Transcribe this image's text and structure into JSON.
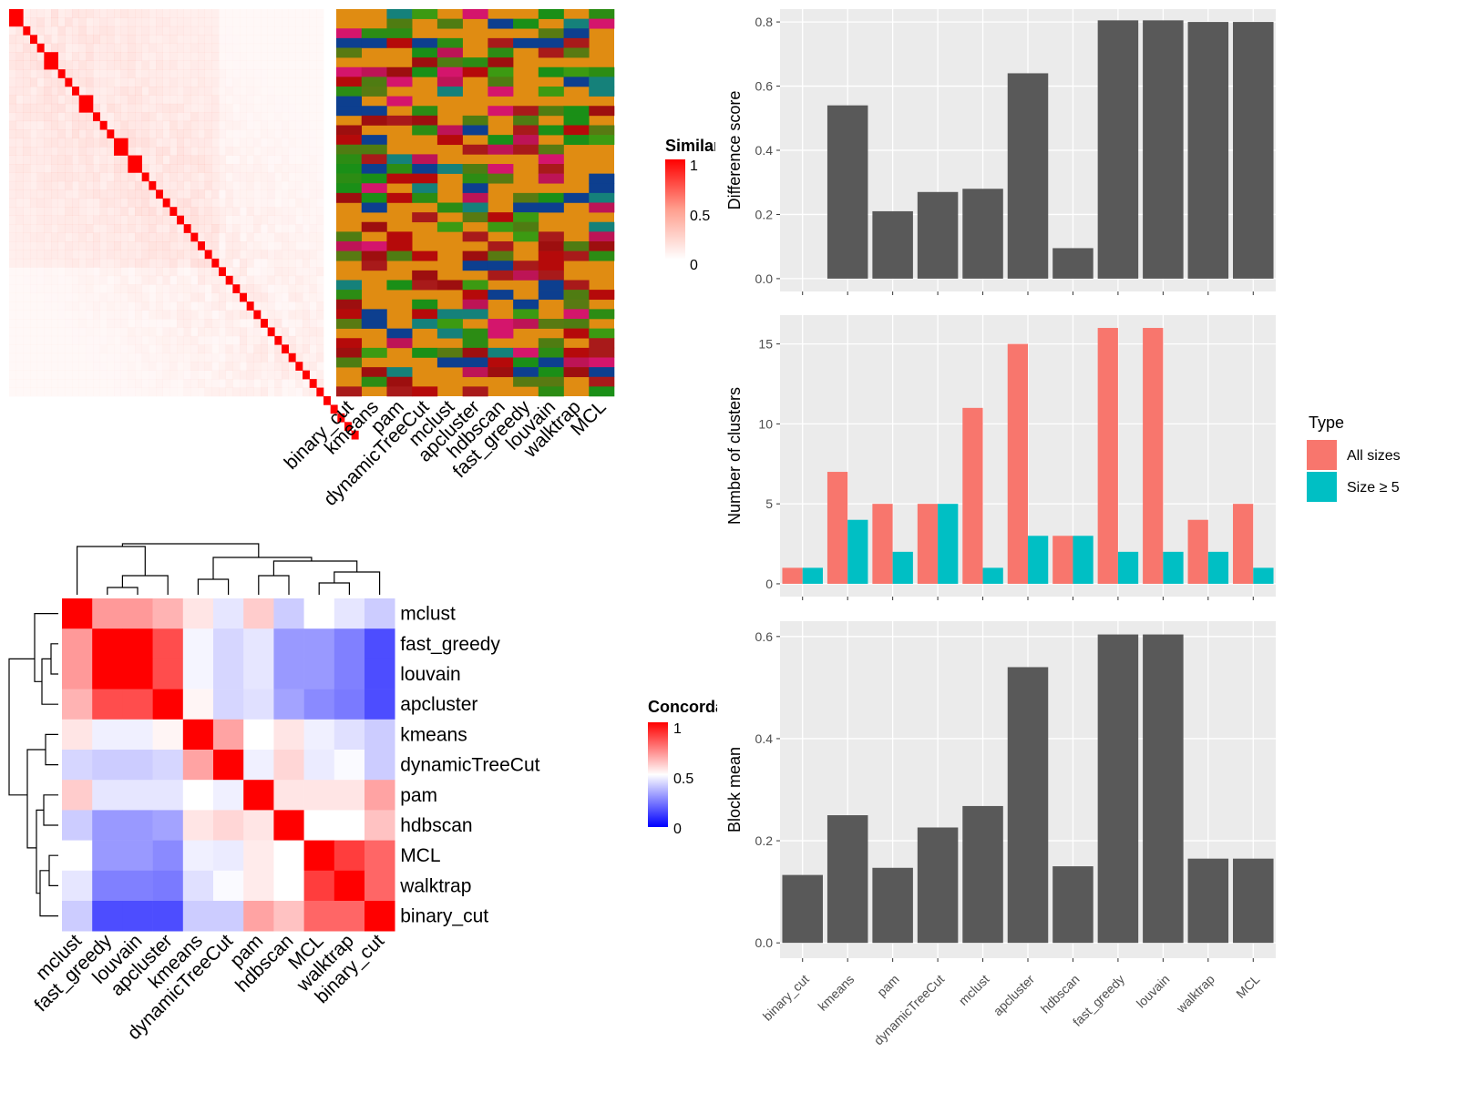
{
  "chart_data": [
    {
      "type": "heatmap",
      "name": "similarity-heatmap",
      "legend_title": "Similarity",
      "legend_ticks": [
        "1",
        "0.5",
        "0"
      ],
      "colors": {
        "low": "#ffffff",
        "high": "#ff0000"
      },
      "blocks": [
        2,
        1,
        1,
        1,
        2,
        1,
        1,
        1,
        2,
        1,
        1,
        1,
        2,
        2,
        1,
        1,
        1,
        1,
        1,
        1,
        1,
        1,
        1,
        1,
        1,
        1,
        1,
        1,
        1,
        1,
        1,
        1,
        1,
        1,
        1,
        1,
        1,
        1,
        1,
        1,
        1,
        1,
        1,
        1,
        1
      ]
    },
    {
      "type": "heatmap",
      "name": "cluster-membership",
      "columns": [
        "binary_cut",
        "kmeans",
        "pam",
        "dynamicTreeCut",
        "mclust",
        "apcluster",
        "hdbscan",
        "fast_greedy",
        "louvain",
        "walktrap",
        "MCL"
      ]
    },
    {
      "type": "heatmap",
      "name": "concordance-heatmap",
      "legend_title": "Concordance",
      "legend_ticks": [
        "1",
        "0.5",
        "0"
      ],
      "rows": [
        "mclust",
        "fast_greedy",
        "louvain",
        "apcluster",
        "kmeans",
        "dynamicTreeCut",
        "pam",
        "hdbscan",
        "MCL",
        "walktrap",
        "binary_cut"
      ],
      "columns": [
        "mclust",
        "fast_greedy",
        "louvain",
        "apcluster",
        "kmeans",
        "dynamicTreeCut",
        "pam",
        "hdbscan",
        "MCL",
        "walktrap",
        "binary_cut"
      ],
      "values": [
        [
          1.0,
          0.7,
          0.7,
          0.65,
          0.55,
          0.45,
          0.6,
          0.4,
          0.5,
          0.45,
          0.4
        ],
        [
          0.7,
          1.0,
          1.0,
          0.85,
          0.48,
          0.42,
          0.45,
          0.3,
          0.3,
          0.25,
          0.15
        ],
        [
          0.7,
          1.0,
          1.0,
          0.85,
          0.48,
          0.42,
          0.45,
          0.3,
          0.3,
          0.25,
          0.15
        ],
        [
          0.65,
          0.85,
          0.85,
          1.0,
          0.52,
          0.42,
          0.44,
          0.32,
          0.27,
          0.24,
          0.15
        ],
        [
          0.55,
          0.47,
          0.47,
          0.52,
          1.0,
          0.68,
          0.5,
          0.55,
          0.47,
          0.44,
          0.4
        ],
        [
          0.42,
          0.4,
          0.4,
          0.42,
          0.68,
          1.0,
          0.47,
          0.58,
          0.46,
          0.49,
          0.4
        ],
        [
          0.6,
          0.45,
          0.45,
          0.45,
          0.5,
          0.47,
          1.0,
          0.55,
          0.55,
          0.55,
          0.68
        ],
        [
          0.4,
          0.3,
          0.3,
          0.32,
          0.55,
          0.58,
          0.55,
          1.0,
          0.5,
          0.5,
          0.62
        ],
        [
          0.5,
          0.3,
          0.3,
          0.27,
          0.47,
          0.46,
          0.54,
          0.5,
          1.0,
          0.88,
          0.8
        ],
        [
          0.45,
          0.25,
          0.25,
          0.24,
          0.44,
          0.49,
          0.54,
          0.5,
          0.88,
          1.0,
          0.8
        ],
        [
          0.4,
          0.15,
          0.15,
          0.15,
          0.4,
          0.4,
          0.68,
          0.62,
          0.8,
          0.8,
          1.0
        ]
      ]
    },
    {
      "type": "bar",
      "name": "difference-score",
      "categories": [
        "binary_cut",
        "kmeans",
        "pam",
        "dynamicTreeCut",
        "mclust",
        "apcluster",
        "hdbscan",
        "fast_greedy",
        "louvain",
        "walktrap",
        "MCL"
      ],
      "values": [
        0,
        0.54,
        0.21,
        0.27,
        0.28,
        0.64,
        0.095,
        0.805,
        0.805,
        0.8,
        0.8
      ],
      "ylabel": "Difference score",
      "ylim": [
        -0.04,
        0.84
      ],
      "yticks": [
        "0.0",
        "0.2",
        "0.4",
        "0.6",
        "0.8"
      ],
      "grid": true,
      "colors": {
        "bar": "#595959",
        "panel": "#ebebeb",
        "grid": "#ffffff"
      }
    },
    {
      "type": "bar",
      "name": "number-of-clusters",
      "categories": [
        "binary_cut",
        "kmeans",
        "pam",
        "dynamicTreeCut",
        "mclust",
        "apcluster",
        "hdbscan",
        "fast_greedy",
        "louvain",
        "walktrap",
        "MCL"
      ],
      "series": [
        {
          "name": "All sizes",
          "values": [
            1,
            7,
            5,
            5,
            11,
            15,
            3,
            16,
            16,
            4,
            5
          ],
          "color": "#f8766d"
        },
        {
          "name": "Size ≥ 5",
          "values": [
            1,
            4,
            2,
            5,
            1,
            3,
            3,
            2,
            2,
            2,
            1
          ],
          "color": "#00bfc4"
        }
      ],
      "ylabel": "Number of clusters",
      "ylim": [
        -0.8,
        16.8
      ],
      "yticks": [
        "0",
        "5",
        "10",
        "15"
      ],
      "legend_title": "Type",
      "legend_position": "right",
      "grid": true
    },
    {
      "type": "bar",
      "name": "block-mean",
      "categories": [
        "binary_cut",
        "kmeans",
        "pam",
        "dynamicTreeCut",
        "mclust",
        "apcluster",
        "hdbscan",
        "fast_greedy",
        "louvain",
        "walktrap",
        "MCL"
      ],
      "values": [
        0.133,
        0.25,
        0.147,
        0.226,
        0.268,
        0.54,
        0.15,
        0.604,
        0.604,
        0.165,
        0.165
      ],
      "ylabel": "Block mean",
      "ylim": [
        -0.03,
        0.63
      ],
      "yticks": [
        "0.0",
        "0.2",
        "0.4",
        "0.6"
      ],
      "grid": true
    }
  ]
}
